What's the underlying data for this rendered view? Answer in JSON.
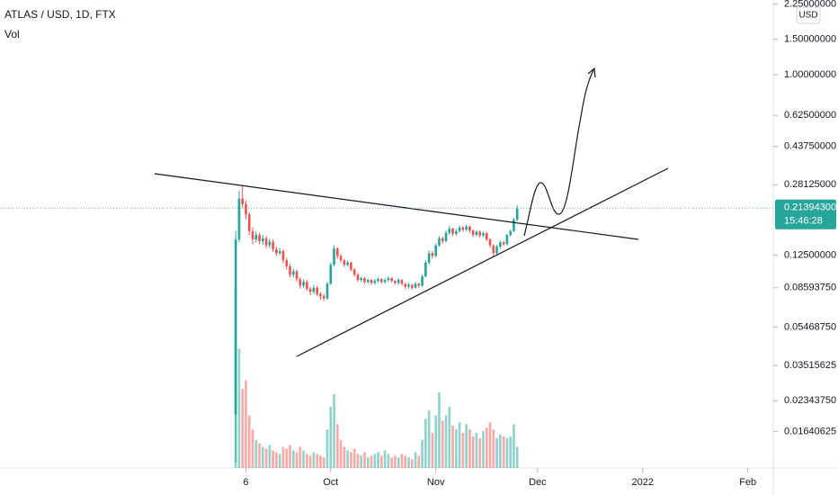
{
  "chart_data": {
    "type": "candlestick",
    "title": "ATLAS / USD, 1D, FTX",
    "volume_label": "Vol",
    "currency": "USD",
    "log_scale": true,
    "up_color": "#26a69a",
    "down_color": "#ef5350",
    "xlim": [
      0,
      228
    ],
    "xticks": [
      {
        "value": 72.5,
        "label": "6"
      },
      {
        "value": 97.5,
        "label": "Oct"
      },
      {
        "value": 128.5,
        "label": "Nov"
      },
      {
        "value": 158.5,
        "label": "Dec"
      },
      {
        "value": 189.5,
        "label": "2022"
      },
      {
        "value": 220.5,
        "label": "Feb"
      }
    ],
    "ylim": [
      0.0108,
      2.36
    ],
    "yticks": [
      {
        "value": 2.25,
        "label": "2.25000000"
      },
      {
        "value": 1.5,
        "label": "1.50000000"
      },
      {
        "value": 1,
        "label": "1.00000000"
      },
      {
        "value": 0.625,
        "label": "0.62500000"
      },
      {
        "value": 0.4375,
        "label": "0.43750000"
      },
      {
        "value": 0.28125,
        "label": "0.28125000"
      },
      {
        "value": 0.125,
        "label": "0.12500000"
      },
      {
        "value": 0.0859375,
        "label": "0.08593750"
      },
      {
        "value": 0.0546875,
        "label": "0.05468750"
      },
      {
        "value": 0.03515625,
        "label": "0.03515625"
      },
      {
        "value": 0.0234375,
        "label": "0.02343750"
      },
      {
        "value": 0.01640625,
        "label": "0.01640625"
      }
    ],
    "price_label": {
      "value": 0.213943,
      "label": "0.21394300"
    },
    "countdown": "15:46:28",
    "volume_lim": [
      0,
      100
    ],
    "x": [
      69.5,
      70.5,
      71.5,
      72.5,
      73.5,
      74.5,
      75.5,
      76.5,
      77.5,
      78.5,
      79.5,
      80.5,
      81.5,
      82.5,
      83.5,
      84.5,
      85.5,
      86.5,
      87.5,
      88.5,
      89.5,
      90.5,
      91.5,
      92.5,
      93.5,
      94.5,
      95.5,
      96.5,
      97.5,
      98.5,
      99.5,
      100.5,
      101.5,
      102.5,
      103.5,
      104.5,
      105.5,
      106.5,
      107.5,
      108.5,
      109.5,
      110.5,
      111.5,
      112.5,
      113.5,
      114.5,
      115.5,
      116.5,
      117.5,
      118.5,
      119.5,
      120.5,
      121.5,
      122.5,
      123.5,
      124.5,
      125.5,
      126.5,
      127.5,
      128.5,
      129.5,
      130.5,
      131.5,
      132.5,
      133.5,
      134.5,
      135.5,
      136.5,
      137.5,
      138.5,
      139.5,
      140.5,
      141.5,
      142.5,
      143.5,
      144.5,
      145.5,
      146.5,
      147.5,
      148.5,
      149.5,
      150.5,
      151.5,
      152.5
    ],
    "open": [
      0.02,
      0.15,
      0.24,
      0.225,
      0.2,
      0.165,
      0.15,
      0.158,
      0.147,
      0.152,
      0.14,
      0.146,
      0.134,
      0.128,
      0.131,
      0.118,
      0.11,
      0.1,
      0.104,
      0.095,
      0.088,
      0.092,
      0.085,
      0.082,
      0.086,
      0.08,
      0.078,
      0.076,
      0.09,
      0.112,
      0.135,
      0.124,
      0.118,
      0.112,
      0.115,
      0.106,
      0.1,
      0.094,
      0.096,
      0.092,
      0.094,
      0.091,
      0.093,
      0.095,
      0.092,
      0.094,
      0.096,
      0.093,
      0.091,
      0.094,
      0.09,
      0.087,
      0.089,
      0.086,
      0.09,
      0.088,
      0.098,
      0.115,
      0.128,
      0.124,
      0.14,
      0.152,
      0.147,
      0.162,
      0.17,
      0.16,
      0.165,
      0.172,
      0.168,
      0.174,
      0.166,
      0.158,
      0.164,
      0.157,
      0.161,
      0.15,
      0.14,
      0.128,
      0.138,
      0.145,
      0.142,
      0.158,
      0.165,
      0.188
    ],
    "high": [
      0.165,
      0.262,
      0.28,
      0.235,
      0.205,
      0.172,
      0.165,
      0.162,
      0.158,
      0.156,
      0.151,
      0.15,
      0.138,
      0.136,
      0.134,
      0.121,
      0.113,
      0.107,
      0.106,
      0.097,
      0.095,
      0.094,
      0.087,
      0.089,
      0.088,
      0.082,
      0.08,
      0.092,
      0.115,
      0.14,
      0.137,
      0.127,
      0.12,
      0.118,
      0.116,
      0.108,
      0.102,
      0.098,
      0.097,
      0.096,
      0.095,
      0.095,
      0.097,
      0.096,
      0.096,
      0.098,
      0.097,
      0.094,
      0.096,
      0.095,
      0.091,
      0.091,
      0.09,
      0.092,
      0.091,
      0.1,
      0.118,
      0.132,
      0.131,
      0.143,
      0.156,
      0.155,
      0.166,
      0.175,
      0.172,
      0.169,
      0.176,
      0.175,
      0.178,
      0.176,
      0.168,
      0.167,
      0.166,
      0.164,
      0.163,
      0.152,
      0.142,
      0.141,
      0.148,
      0.148,
      0.16,
      0.168,
      0.192,
      0.222
    ],
    "low": [
      0.0115,
      0.145,
      0.215,
      0.19,
      0.158,
      0.142,
      0.145,
      0.142,
      0.141,
      0.135,
      0.136,
      0.13,
      0.124,
      0.125,
      0.114,
      0.106,
      0.097,
      0.097,
      0.092,
      0.085,
      0.086,
      0.083,
      0.079,
      0.08,
      0.078,
      0.075,
      0.074,
      0.075,
      0.089,
      0.11,
      0.12,
      0.115,
      0.109,
      0.11,
      0.104,
      0.098,
      0.092,
      0.092,
      0.09,
      0.09,
      0.089,
      0.089,
      0.091,
      0.09,
      0.09,
      0.092,
      0.091,
      0.089,
      0.089,
      0.088,
      0.085,
      0.085,
      0.084,
      0.085,
      0.086,
      0.087,
      0.097,
      0.113,
      0.12,
      0.122,
      0.138,
      0.143,
      0.145,
      0.158,
      0.156,
      0.157,
      0.162,
      0.164,
      0.165,
      0.162,
      0.154,
      0.155,
      0.153,
      0.154,
      0.147,
      0.136,
      0.124,
      0.126,
      0.135,
      0.139,
      0.14,
      0.155,
      0.163,
      0.185
    ],
    "close": [
      0.15,
      0.24,
      0.225,
      0.2,
      0.165,
      0.15,
      0.158,
      0.147,
      0.152,
      0.14,
      0.146,
      0.134,
      0.128,
      0.131,
      0.118,
      0.11,
      0.1,
      0.104,
      0.095,
      0.088,
      0.092,
      0.085,
      0.082,
      0.086,
      0.08,
      0.078,
      0.076,
      0.09,
      0.112,
      0.135,
      0.124,
      0.118,
      0.112,
      0.115,
      0.106,
      0.1,
      0.094,
      0.096,
      0.092,
      0.094,
      0.091,
      0.093,
      0.095,
      0.092,
      0.094,
      0.096,
      0.093,
      0.091,
      0.094,
      0.09,
      0.087,
      0.089,
      0.086,
      0.09,
      0.088,
      0.098,
      0.115,
      0.128,
      0.124,
      0.14,
      0.152,
      0.147,
      0.162,
      0.17,
      0.16,
      0.165,
      0.172,
      0.168,
      0.174,
      0.166,
      0.158,
      0.164,
      0.157,
      0.161,
      0.15,
      0.14,
      0.128,
      0.138,
      0.145,
      0.142,
      0.158,
      0.165,
      0.188,
      0.213943
    ],
    "volume": [
      100,
      68,
      45,
      50,
      30,
      22,
      16,
      14,
      12,
      11,
      13,
      10,
      9,
      8,
      12,
      11,
      13,
      10,
      9,
      12,
      10,
      8,
      7,
      9,
      8,
      7,
      6,
      22,
      35,
      42,
      25,
      16,
      12,
      10,
      9,
      11,
      8,
      7,
      9,
      6,
      7,
      8,
      9,
      7,
      10,
      8,
      6,
      7,
      6,
      8,
      7,
      6,
      5,
      9,
      7,
      16,
      28,
      33,
      20,
      30,
      43,
      27,
      30,
      35,
      24,
      22,
      26,
      20,
      25,
      22,
      18,
      20,
      17,
      21,
      23,
      26,
      22,
      17,
      19,
      18,
      17,
      18,
      25,
      12
    ]
  }
}
